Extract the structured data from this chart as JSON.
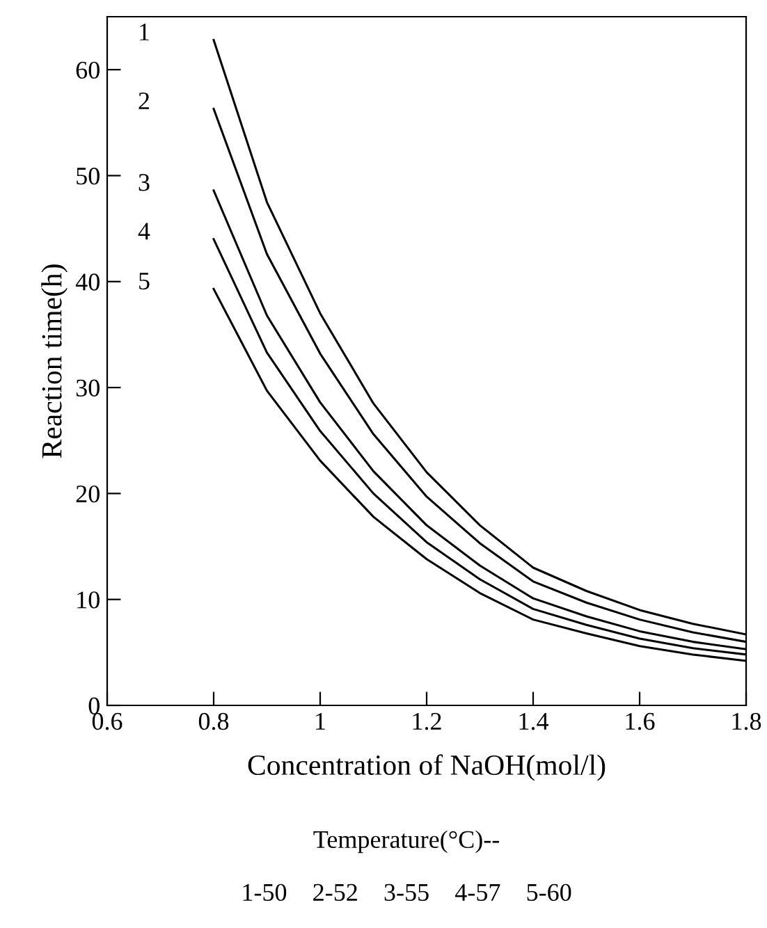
{
  "chart_data": {
    "type": "line",
    "xlabel": "Concentration of NaOH(mol/l)",
    "ylabel": "Reaction time(h)",
    "x": [
      0.8,
      0.9,
      1.0,
      1.1,
      1.2,
      1.3,
      1.4,
      1.5,
      1.6,
      1.7,
      1.8
    ],
    "series": [
      {
        "name": "1",
        "color": "#000000",
        "values": [
          62.8,
          47.5,
          37,
          28.5,
          22,
          17,
          13,
          10.8,
          9,
          7.7,
          6.7
        ]
      },
      {
        "name": "2",
        "color": "#000000",
        "values": [
          56.3,
          42.6,
          33.2,
          25.6,
          19.7,
          15.3,
          11.7,
          9.7,
          8.1,
          6.9,
          6.0
        ]
      },
      {
        "name": "3",
        "color": "#000000",
        "values": [
          48.6,
          36.8,
          28.6,
          22.1,
          17.0,
          13.2,
          10.1,
          8.4,
          7.0,
          6.0,
          5.3
        ]
      },
      {
        "name": "4",
        "color": "#000000",
        "values": [
          44,
          33.3,
          25.9,
          20.0,
          15.4,
          11.9,
          9.1,
          7.6,
          6.3,
          5.4,
          4.8
        ]
      },
      {
        "name": "5",
        "color": "#000000",
        "values": [
          39.3,
          29.7,
          23.1,
          17.8,
          13.8,
          10.6,
          8.1,
          6.8,
          5.6,
          4.8,
          4.2
        ]
      }
    ],
    "xlim": [
      0.6,
      1.8
    ],
    "ylim": [
      0,
      65
    ],
    "xticks": [
      0.6,
      0.8,
      {
        "value": 1.0,
        "label": "1"
      },
      1.2,
      1.4,
      1.6,
      1.8
    ],
    "yticks": [
      0,
      10,
      20,
      30,
      40,
      50,
      60
    ],
    "grid": false,
    "legend": false,
    "marker": "none",
    "line_style": "solid",
    "annotations": [
      "Temperature(°C)--",
      "1-50    2-52    3-55    4-57    5-60"
    ]
  }
}
